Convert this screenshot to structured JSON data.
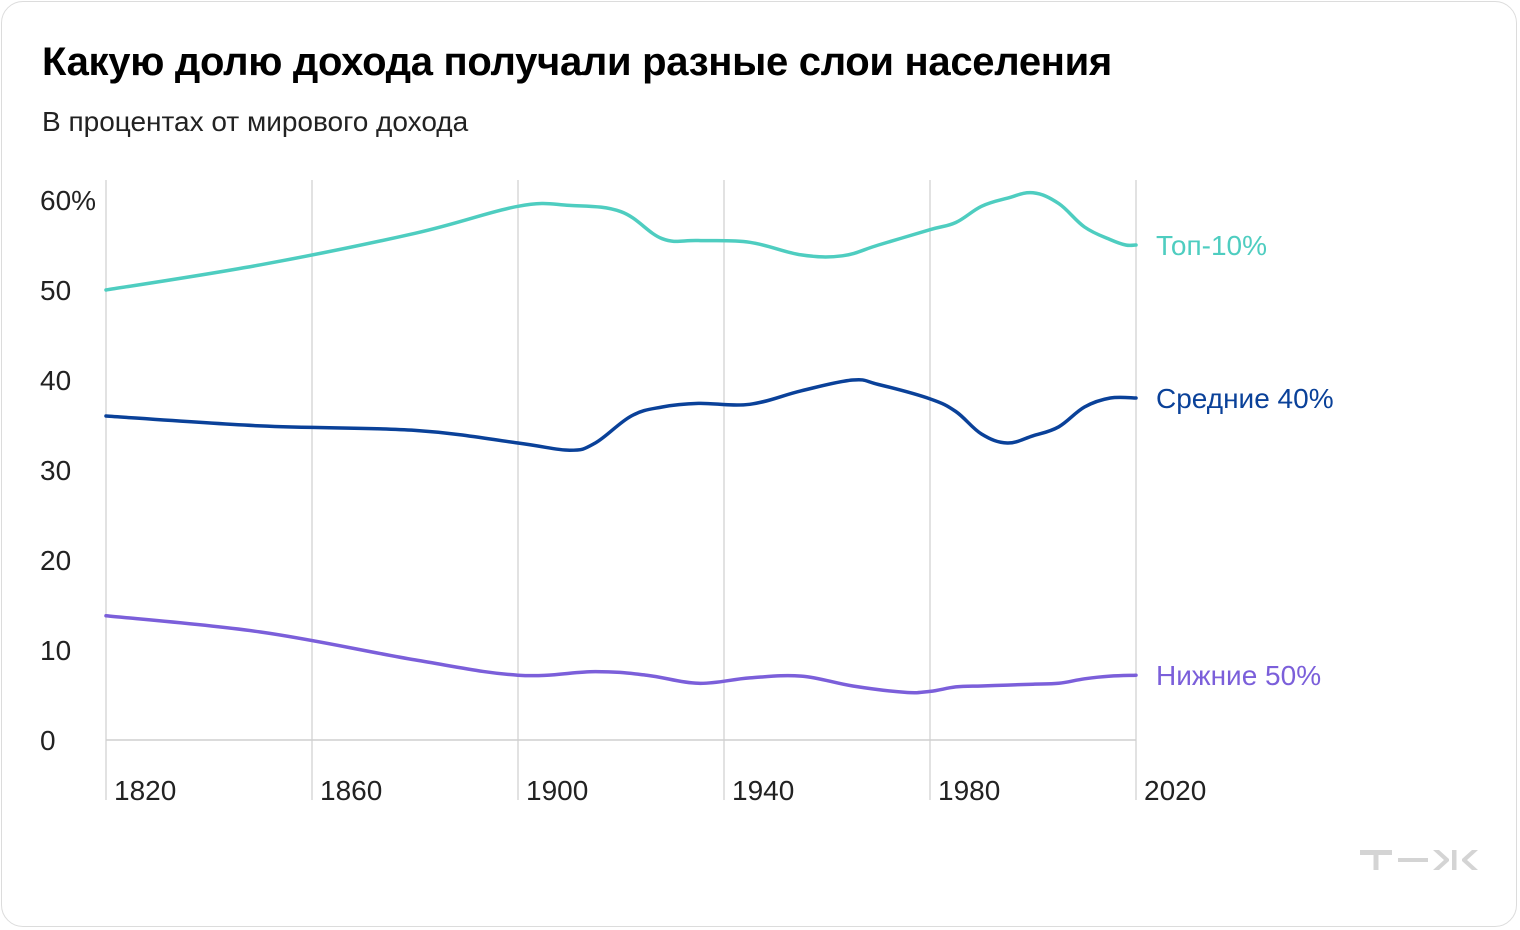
{
  "header": {
    "title": "Какую долю дохода получали разные слои населения",
    "subtitle": "В процентах от мирового дохода"
  },
  "chart_data": {
    "type": "line",
    "title": "Какую долю дохода получали разные слои населения",
    "subtitle": "В процентах от мирового дохода",
    "xlabel": "",
    "ylabel": "",
    "xlim": [
      1820,
      2020
    ],
    "ylim": [
      0,
      60
    ],
    "x_ticks": [
      1820,
      1860,
      1900,
      1940,
      1980,
      2020
    ],
    "y_ticks": [
      0,
      10,
      20,
      30,
      40,
      50,
      60
    ],
    "y_tick_labels": [
      "0",
      "10",
      "20",
      "30",
      "40",
      "50",
      "60%"
    ],
    "x_grid": true,
    "y_grid": false,
    "legend": "direct labels at right end of lines",
    "series": [
      {
        "name": "Топ-10%",
        "color": "#4ecdc0",
        "points": [
          [
            1820,
            50.0
          ],
          [
            1850,
            52.8
          ],
          [
            1880,
            56.3
          ],
          [
            1900,
            59.3
          ],
          [
            1910,
            59.4
          ],
          [
            1920,
            58.7
          ],
          [
            1928,
            55.7
          ],
          [
            1935,
            55.5
          ],
          [
            1945,
            55.3
          ],
          [
            1955,
            53.9
          ],
          [
            1963,
            53.8
          ],
          [
            1970,
            55.0
          ],
          [
            1980,
            56.7
          ],
          [
            1985,
            57.5
          ],
          [
            1990,
            59.3
          ],
          [
            1995,
            60.2
          ],
          [
            2000,
            60.8
          ],
          [
            2005,
            59.6
          ],
          [
            2010,
            57.0
          ],
          [
            2015,
            55.6
          ],
          [
            2018,
            55.0
          ],
          [
            2020,
            55.0
          ]
        ]
      },
      {
        "name": "Средние 40%",
        "color": "#0a4199",
        "points": [
          [
            1820,
            36.0
          ],
          [
            1850,
            34.9
          ],
          [
            1880,
            34.4
          ],
          [
            1900,
            33.0
          ],
          [
            1910,
            32.2
          ],
          [
            1915,
            33.0
          ],
          [
            1922,
            36.0
          ],
          [
            1928,
            37.0
          ],
          [
            1935,
            37.4
          ],
          [
            1945,
            37.3
          ],
          [
            1955,
            38.8
          ],
          [
            1965,
            40.0
          ],
          [
            1970,
            39.5
          ],
          [
            1980,
            37.9
          ],
          [
            1985,
            36.5
          ],
          [
            1990,
            34.0
          ],
          [
            1995,
            33.0
          ],
          [
            2000,
            33.8
          ],
          [
            2005,
            34.8
          ],
          [
            2010,
            37.0
          ],
          [
            2015,
            38.0
          ],
          [
            2020,
            38.0
          ]
        ]
      },
      {
        "name": "Нижние 50%",
        "color": "#7b5fda",
        "points": [
          [
            1820,
            13.8
          ],
          [
            1850,
            12.0
          ],
          [
            1880,
            8.9
          ],
          [
            1900,
            7.2
          ],
          [
            1915,
            7.6
          ],
          [
            1925,
            7.2
          ],
          [
            1935,
            6.3
          ],
          [
            1945,
            6.9
          ],
          [
            1955,
            7.1
          ],
          [
            1965,
            6.0
          ],
          [
            1975,
            5.3
          ],
          [
            1980,
            5.4
          ],
          [
            1985,
            5.9
          ],
          [
            1990,
            6.0
          ],
          [
            1995,
            6.1
          ],
          [
            2000,
            6.2
          ],
          [
            2005,
            6.3
          ],
          [
            2010,
            6.8
          ],
          [
            2015,
            7.1
          ],
          [
            2020,
            7.2
          ]
        ]
      }
    ]
  }
}
